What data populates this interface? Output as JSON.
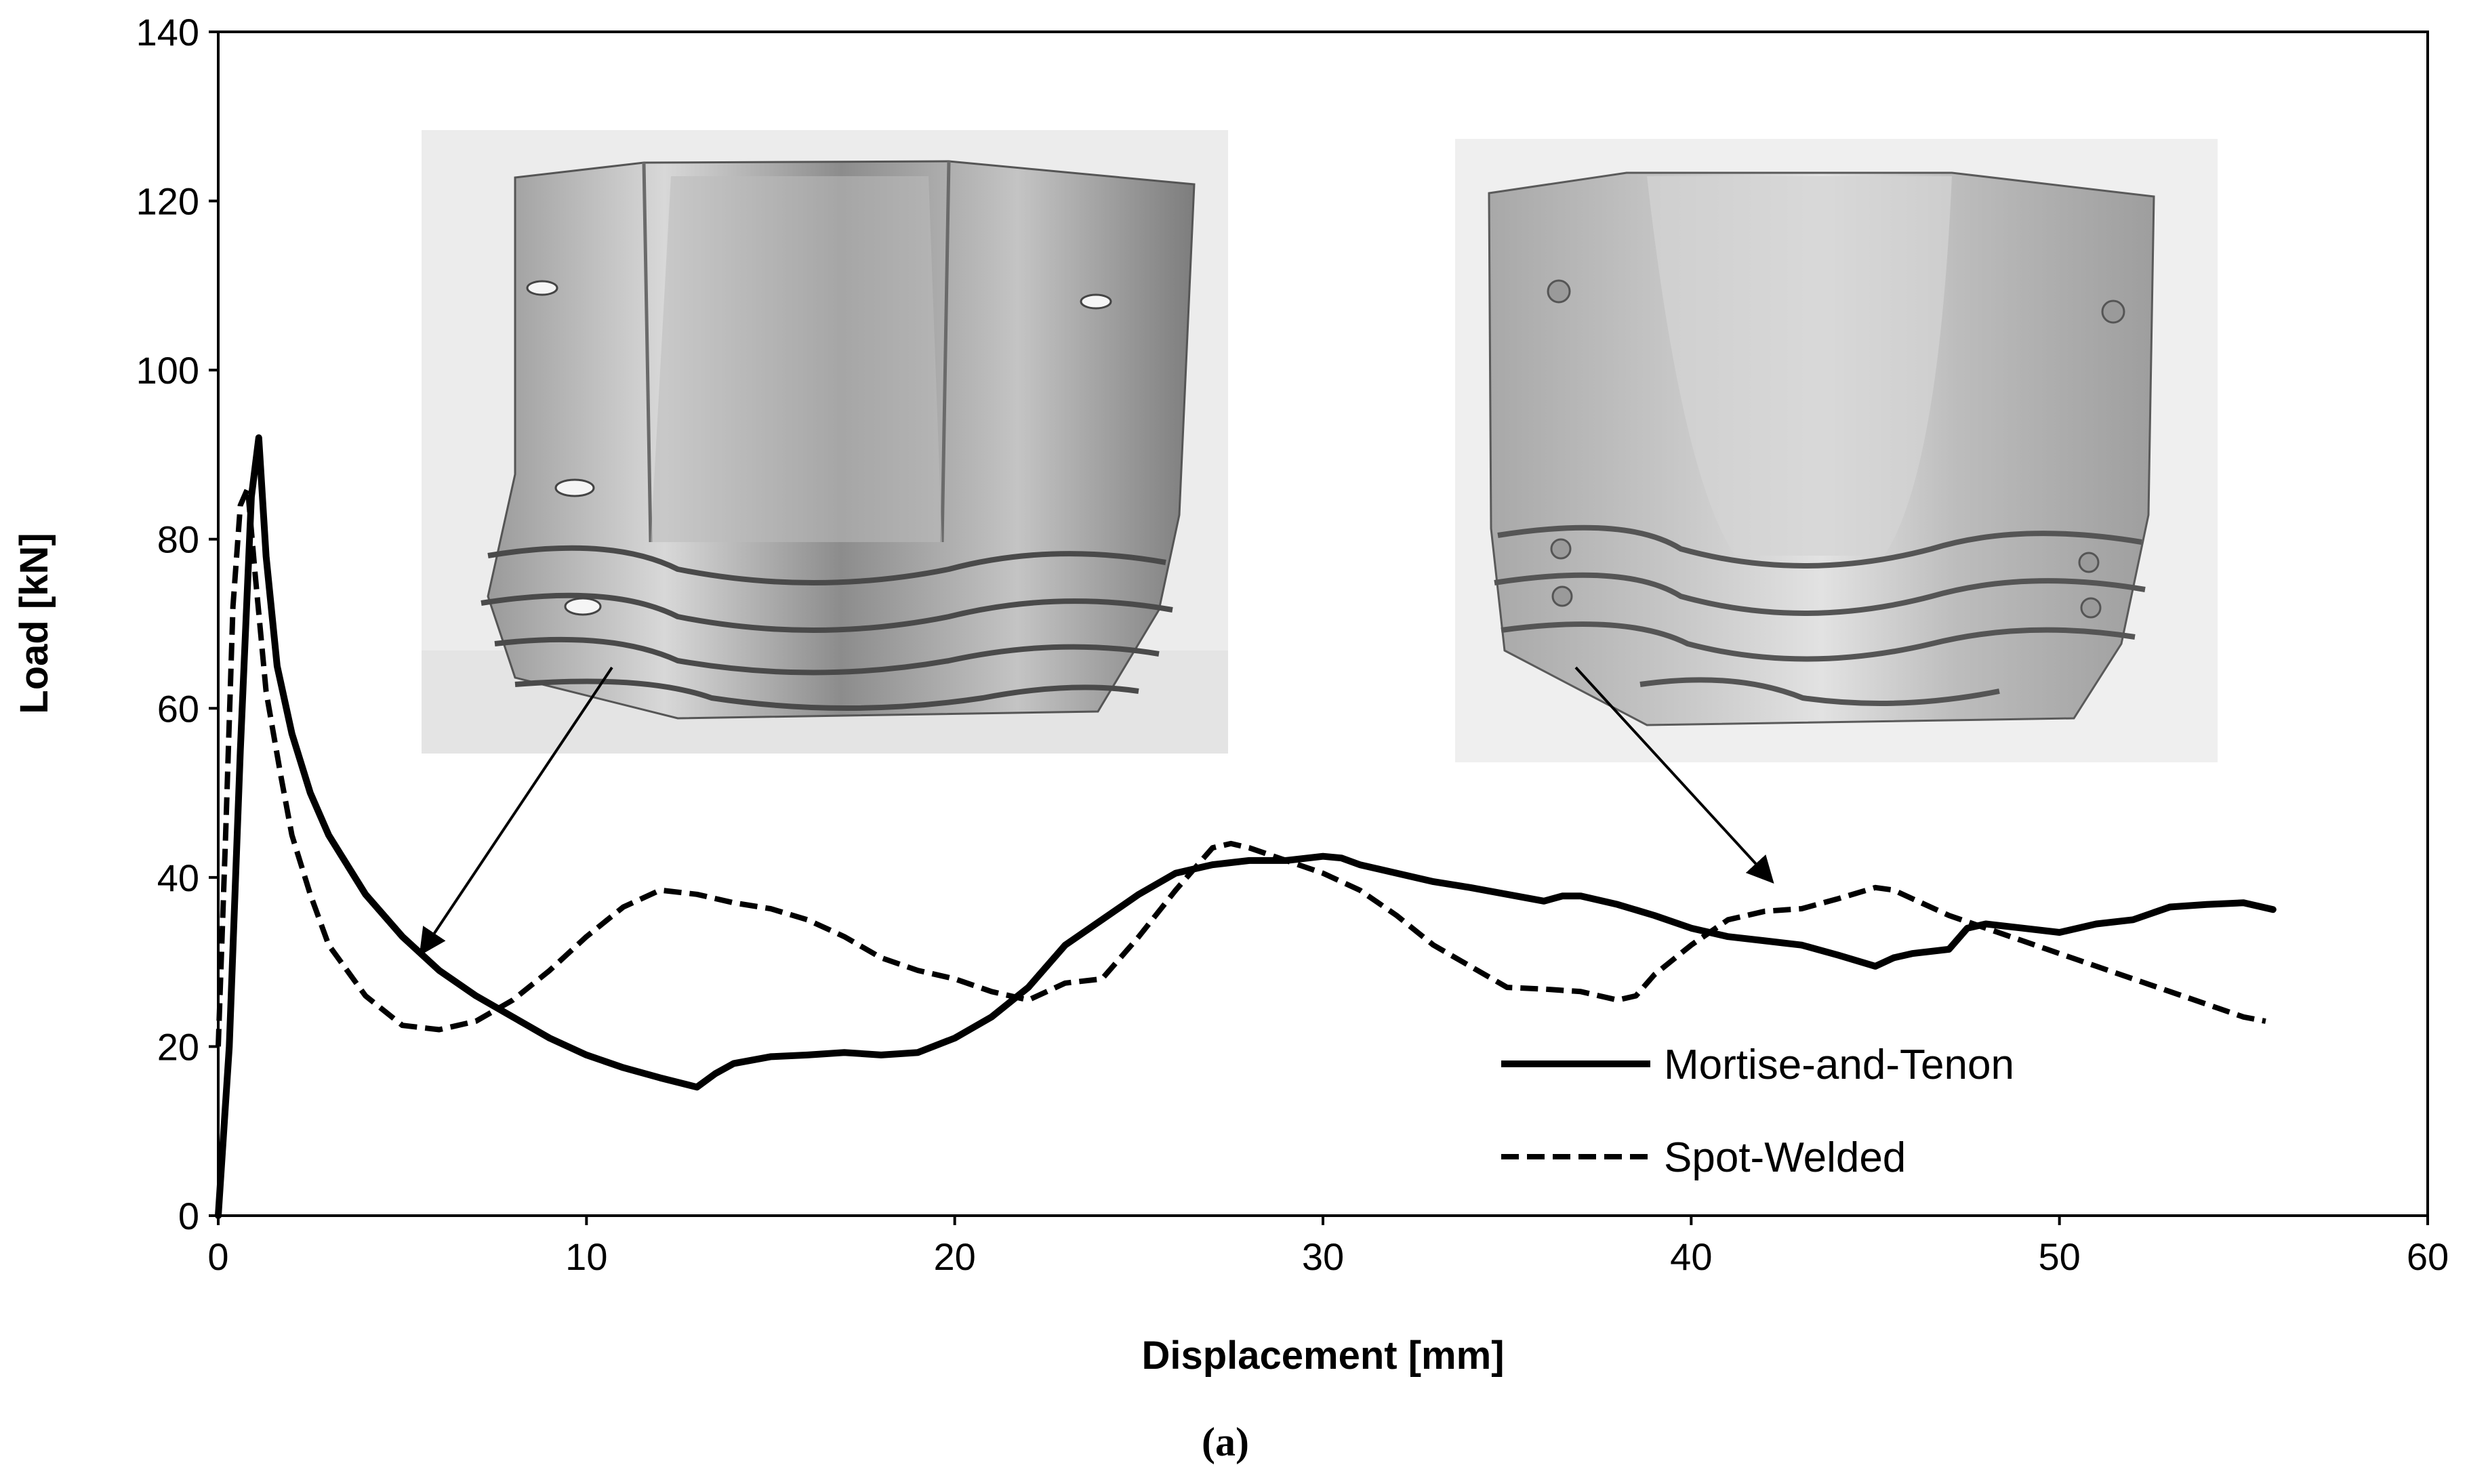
{
  "chart_data": {
    "type": "line",
    "xlabel": "Displacement [mm]",
    "ylabel": "Load [kN]",
    "xlim": [
      0,
      60
    ],
    "ylim": [
      0,
      140
    ],
    "xticks": [
      0,
      10,
      20,
      30,
      40,
      50,
      60
    ],
    "yticks": [
      0,
      20,
      40,
      60,
      80,
      100,
      120,
      140
    ],
    "grid": false,
    "legend_position": "bottom-right",
    "caption": "(a)",
    "series": [
      {
        "name": "Mortise-and-Tenon",
        "style": "solid",
        "color": "#000000",
        "x": [
          0,
          0.3,
          0.6,
          0.9,
          1.1,
          1.3,
          1.6,
          2.0,
          2.5,
          3.0,
          4.0,
          5.0,
          6.0,
          7.0,
          8.0,
          9.0,
          10.0,
          11.0,
          12.0,
          13.0,
          13.5,
          14.0,
          15.0,
          16.0,
          17.0,
          18.0,
          19.0,
          20.0,
          21.0,
          22.0,
          23.0,
          24.0,
          25.0,
          26.0,
          27.0,
          28.0,
          29.0,
          30.0,
          30.5,
          31.0,
          32.0,
          33.0,
          34.0,
          35.0,
          36.0,
          36.5,
          37.0,
          38.0,
          39.0,
          40.0,
          41.0,
          42.0,
          43.0,
          44.0,
          45.0,
          45.5,
          46.0,
          47.0,
          47.5,
          48.0,
          49.0,
          50.0,
          51.0,
          52.0,
          53.0,
          54.0,
          55.0,
          55.8
        ],
        "y": [
          0,
          20,
          55,
          85,
          92,
          78,
          65,
          57,
          50,
          45,
          38,
          33,
          29,
          26,
          23.5,
          21,
          19,
          17.5,
          16.3,
          15.2,
          16.8,
          18,
          18.8,
          19,
          19.3,
          19,
          19.3,
          21,
          23.5,
          27,
          32,
          35,
          38,
          40.5,
          41.5,
          42,
          42,
          42.5,
          42.3,
          41.5,
          40.5,
          39.5,
          38.8,
          38,
          37.2,
          37.8,
          37.8,
          36.8,
          35.5,
          34,
          33,
          32.5,
          32,
          30.8,
          29.5,
          30.5,
          31,
          31.5,
          34,
          34.5,
          34,
          33.5,
          34.5,
          35,
          36.5,
          36.8,
          37,
          36.2
        ]
      },
      {
        "name": "Spot-Welded",
        "style": "dashed",
        "color": "#000000",
        "x": [
          0,
          0.2,
          0.4,
          0.6,
          0.8,
          1.0,
          1.3,
          1.7,
          2.0,
          2.5,
          3.0,
          4.0,
          5.0,
          6.0,
          7.0,
          8.0,
          9.0,
          10.0,
          11.0,
          12.0,
          13.0,
          14.0,
          15.0,
          16.0,
          17.0,
          18.0,
          19.0,
          20.0,
          21.0,
          22.0,
          23.0,
          24.0,
          25.0,
          26.0,
          27.0,
          27.5,
          28.0,
          29.0,
          30.0,
          31.0,
          32.0,
          33.0,
          34.0,
          35.0,
          36.0,
          37.0,
          38.0,
          38.5,
          39.0,
          40.0,
          41.0,
          42.0,
          43.0,
          44.0,
          45.0,
          45.5,
          46.0,
          47.0,
          48.0,
          49.0,
          50.0,
          51.0,
          52.0,
          53.0,
          54.0,
          55.0,
          55.6
        ],
        "y": [
          20,
          45,
          72,
          84,
          86,
          76,
          62,
          52,
          45,
          38,
          32,
          26,
          22.5,
          22,
          23,
          25.5,
          29,
          33,
          36.5,
          38.5,
          38,
          37,
          36.3,
          35,
          33,
          30.5,
          29,
          28,
          26.5,
          25.5,
          27.5,
          28,
          33,
          38.5,
          43.5,
          44,
          43.5,
          42,
          40.5,
          38.5,
          35.5,
          32,
          29.5,
          27,
          26.8,
          26.5,
          25.5,
          26,
          28.5,
          32,
          35,
          36,
          36.3,
          37.5,
          38.8,
          38.5,
          37.5,
          35.5,
          34,
          32.5,
          31,
          29.5,
          28,
          26.5,
          25,
          23.5,
          23
        ]
      }
    ]
  },
  "photos": {
    "left": {
      "icon": "crushed-mortise-tenon-specimen-photo",
      "arrow_target": {
        "x": 5.5,
        "y": 31
      }
    },
    "right": {
      "icon": "crushed-spot-welded-specimen-photo",
      "arrow_target": {
        "x": 42.2,
        "y": 39.5
      }
    }
  }
}
